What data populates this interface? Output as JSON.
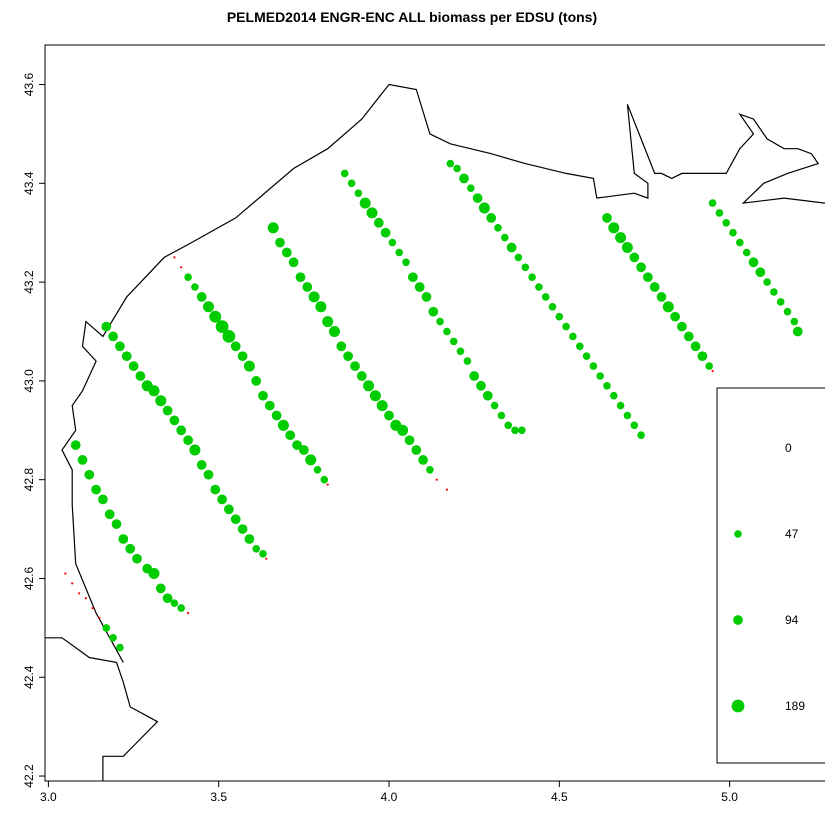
{
  "chart_data": {
    "type": "scatter",
    "title": "PELMED2014 ENGR-ENC ALL biomass per EDSU (tons)",
    "xlabel": "",
    "ylabel": "",
    "xlim": [
      2.99,
      5.28
    ],
    "ylim": [
      42.19,
      43.68
    ],
    "x_ticks": [
      "3.0",
      "3.5",
      "4.0",
      "4.5",
      "5.0"
    ],
    "y_ticks": [
      "42.2",
      "42.4",
      "42.6",
      "42.8",
      "43.0",
      "43.2",
      "43.4",
      "43.6"
    ],
    "grid": false,
    "colors": {
      "zero": "#ff0000",
      "positive": "#00cc00",
      "coast": "#000000"
    },
    "legend": {
      "placement": "right",
      "entries": [
        {
          "label": "0",
          "value": 0
        },
        {
          "label": "47",
          "value": 47
        },
        {
          "label": "94",
          "value": 94
        },
        {
          "label": "189",
          "value": 189
        }
      ]
    },
    "coastline": [
      [
        [
          2.99,
          42.48
        ],
        [
          3.04,
          42.48
        ],
        [
          3.12,
          42.44
        ],
        [
          3.2,
          42.43
        ],
        [
          3.22,
          42.39
        ],
        [
          3.24,
          42.34
        ],
        [
          3.32,
          42.31
        ],
        [
          3.22,
          42.24
        ],
        [
          3.16,
          42.24
        ],
        [
          3.16,
          42.19
        ]
      ],
      [
        [
          3.22,
          42.43
        ],
        [
          3.14,
          42.53
        ],
        [
          3.08,
          42.63
        ],
        [
          3.07,
          42.75
        ],
        [
          3.07,
          42.82
        ],
        [
          3.04,
          42.86
        ],
        [
          3.08,
          42.9
        ],
        [
          3.07,
          42.95
        ],
        [
          3.1,
          42.98
        ],
        [
          3.14,
          43.04
        ],
        [
          3.1,
          43.07
        ],
        [
          3.11,
          43.12
        ],
        [
          3.16,
          43.09
        ],
        [
          3.23,
          43.17
        ],
        [
          3.34,
          43.25
        ],
        [
          3.42,
          43.28
        ],
        [
          3.55,
          43.33
        ],
        [
          3.72,
          43.43
        ],
        [
          3.82,
          43.47
        ],
        [
          3.92,
          43.53
        ],
        [
          4.0,
          43.6
        ],
        [
          4.08,
          43.59
        ],
        [
          4.12,
          43.5
        ],
        [
          4.18,
          43.48
        ],
        [
          4.3,
          43.46
        ],
        [
          4.4,
          43.44
        ],
        [
          4.52,
          43.42
        ],
        [
          4.6,
          43.41
        ],
        [
          4.61,
          43.37
        ],
        [
          4.72,
          43.38
        ],
        [
          4.76,
          43.37
        ],
        [
          4.76,
          43.4
        ],
        [
          4.72,
          43.42
        ],
        [
          4.7,
          43.56
        ],
        [
          4.74,
          43.49
        ],
        [
          4.78,
          43.42
        ],
        [
          4.8,
          43.42
        ],
        [
          4.83,
          43.41
        ],
        [
          4.86,
          43.42
        ],
        [
          4.93,
          43.42
        ],
        [
          4.99,
          43.42
        ],
        [
          5.03,
          43.47
        ],
        [
          5.07,
          43.5
        ],
        [
          5.03,
          43.54
        ],
        [
          5.07,
          43.53
        ],
        [
          5.11,
          43.49
        ],
        [
          5.16,
          43.47
        ],
        [
          5.2,
          43.47
        ],
        [
          5.24,
          43.46
        ],
        [
          5.26,
          43.44
        ],
        [
          5.17,
          43.42
        ],
        [
          5.1,
          43.4
        ],
        [
          5.04,
          43.36
        ],
        [
          5.16,
          43.37
        ],
        [
          5.28,
          43.36
        ]
      ]
    ],
    "series": [
      {
        "points": [
          [
            3.05,
            42.61,
            0
          ],
          [
            3.07,
            42.59,
            0
          ],
          [
            3.09,
            42.57,
            0
          ],
          [
            3.11,
            42.56,
            0
          ],
          [
            3.13,
            42.54,
            0
          ],
          [
            3.15,
            42.52,
            0
          ],
          [
            3.17,
            42.5,
            47
          ],
          [
            3.19,
            42.48,
            47
          ],
          [
            3.21,
            42.46,
            47
          ]
        ]
      },
      {
        "points": [
          [
            3.08,
            42.87,
            94
          ],
          [
            3.1,
            42.84,
            94
          ],
          [
            3.12,
            42.81,
            94
          ],
          [
            3.14,
            42.78,
            94
          ],
          [
            3.16,
            42.76,
            94
          ],
          [
            3.18,
            42.73,
            94
          ],
          [
            3.2,
            42.71,
            94
          ],
          [
            3.22,
            42.68,
            94
          ],
          [
            3.24,
            42.66,
            94
          ],
          [
            3.26,
            42.64,
            94
          ],
          [
            3.29,
            42.62,
            94
          ],
          [
            3.31,
            42.61,
            130
          ],
          [
            3.33,
            42.58,
            94
          ],
          [
            3.35,
            42.56,
            94
          ],
          [
            3.37,
            42.55,
            47
          ],
          [
            3.39,
            42.54,
            47
          ],
          [
            3.41,
            42.53,
            0
          ]
        ]
      },
      {
        "points": [
          [
            3.17,
            43.11,
            94
          ],
          [
            3.19,
            43.09,
            94
          ],
          [
            3.21,
            43.07,
            94
          ],
          [
            3.23,
            43.05,
            94
          ],
          [
            3.25,
            43.03,
            94
          ],
          [
            3.27,
            43.01,
            94
          ],
          [
            3.29,
            42.99,
            130
          ],
          [
            3.31,
            42.98,
            130
          ],
          [
            3.33,
            42.96,
            130
          ],
          [
            3.35,
            42.94,
            94
          ],
          [
            3.37,
            42.92,
            94
          ],
          [
            3.39,
            42.9,
            94
          ],
          [
            3.41,
            42.88,
            94
          ],
          [
            3.43,
            42.86,
            130
          ],
          [
            3.45,
            42.83,
            94
          ],
          [
            3.47,
            42.81,
            94
          ],
          [
            3.49,
            42.78,
            94
          ],
          [
            3.51,
            42.76,
            94
          ],
          [
            3.53,
            42.74,
            94
          ],
          [
            3.55,
            42.72,
            94
          ],
          [
            3.57,
            42.7,
            94
          ],
          [
            3.59,
            42.68,
            94
          ],
          [
            3.61,
            42.66,
            47
          ],
          [
            3.63,
            42.65,
            47
          ],
          [
            3.64,
            42.64,
            0
          ]
        ]
      },
      {
        "points": [
          [
            3.37,
            43.25,
            0
          ],
          [
            3.39,
            43.23,
            0
          ],
          [
            3.41,
            43.21,
            47
          ],
          [
            3.43,
            43.19,
            47
          ],
          [
            3.45,
            43.17,
            94
          ],
          [
            3.47,
            43.15,
            130
          ],
          [
            3.49,
            43.13,
            160
          ],
          [
            3.51,
            43.11,
            189
          ],
          [
            3.53,
            43.09,
            189
          ],
          [
            3.55,
            43.07,
            94
          ],
          [
            3.57,
            43.05,
            94
          ],
          [
            3.59,
            43.03,
            130
          ],
          [
            3.61,
            43.0,
            94
          ],
          [
            3.63,
            42.97,
            94
          ],
          [
            3.65,
            42.95,
            94
          ],
          [
            3.67,
            42.93,
            94
          ],
          [
            3.69,
            42.91,
            130
          ],
          [
            3.71,
            42.89,
            94
          ],
          [
            3.73,
            42.87,
            94
          ],
          [
            3.75,
            42.86,
            94
          ],
          [
            3.77,
            42.84,
            130
          ],
          [
            3.79,
            42.82,
            47
          ],
          [
            3.81,
            42.8,
            47
          ],
          [
            3.82,
            42.79,
            0
          ]
        ]
      },
      {
        "points": [
          [
            3.66,
            43.31,
            130
          ],
          [
            3.68,
            43.28,
            94
          ],
          [
            3.7,
            43.26,
            94
          ],
          [
            3.72,
            43.24,
            94
          ],
          [
            3.74,
            43.21,
            94
          ],
          [
            3.76,
            43.19,
            94
          ],
          [
            3.78,
            43.17,
            130
          ],
          [
            3.8,
            43.15,
            130
          ],
          [
            3.82,
            43.12,
            130
          ],
          [
            3.84,
            43.1,
            130
          ],
          [
            3.86,
            43.07,
            94
          ],
          [
            3.88,
            43.05,
            94
          ],
          [
            3.9,
            43.03,
            94
          ],
          [
            3.92,
            43.01,
            94
          ],
          [
            3.94,
            42.99,
            130
          ],
          [
            3.96,
            42.97,
            130
          ],
          [
            3.98,
            42.95,
            130
          ],
          [
            4.0,
            42.93,
            94
          ],
          [
            4.02,
            42.91,
            130
          ],
          [
            4.04,
            42.9,
            130
          ],
          [
            4.06,
            42.88,
            94
          ],
          [
            4.08,
            42.86,
            94
          ],
          [
            4.1,
            42.84,
            94
          ],
          [
            4.12,
            42.82,
            47
          ],
          [
            4.14,
            42.8,
            0
          ],
          [
            4.17,
            42.78,
            0
          ]
        ]
      },
      {
        "points": [
          [
            3.87,
            43.42,
            47
          ],
          [
            3.89,
            43.4,
            47
          ],
          [
            3.91,
            43.38,
            47
          ],
          [
            3.93,
            43.36,
            130
          ],
          [
            3.95,
            43.34,
            130
          ],
          [
            3.97,
            43.32,
            94
          ],
          [
            3.99,
            43.3,
            94
          ],
          [
            4.01,
            43.28,
            47
          ],
          [
            4.03,
            43.26,
            47
          ],
          [
            4.05,
            43.24,
            47
          ],
          [
            4.07,
            43.21,
            94
          ],
          [
            4.09,
            43.19,
            94
          ],
          [
            4.11,
            43.17,
            94
          ],
          [
            4.13,
            43.14,
            94
          ],
          [
            4.15,
            43.12,
            47
          ],
          [
            4.17,
            43.1,
            47
          ],
          [
            4.19,
            43.08,
            47
          ],
          [
            4.21,
            43.06,
            47
          ],
          [
            4.23,
            43.04,
            47
          ],
          [
            4.25,
            43.01,
            94
          ],
          [
            4.27,
            42.99,
            94
          ],
          [
            4.29,
            42.97,
            94
          ],
          [
            4.31,
            42.95,
            47
          ],
          [
            4.33,
            42.93,
            47
          ],
          [
            4.35,
            42.91,
            47
          ],
          [
            4.37,
            42.9,
            47
          ],
          [
            4.39,
            42.9,
            47
          ]
        ]
      },
      {
        "points": [
          [
            4.18,
            43.44,
            47
          ],
          [
            4.2,
            43.43,
            47
          ],
          [
            4.22,
            43.41,
            94
          ],
          [
            4.24,
            43.39,
            47
          ],
          [
            4.26,
            43.37,
            94
          ],
          [
            4.28,
            43.35,
            130
          ],
          [
            4.3,
            43.33,
            94
          ],
          [
            4.32,
            43.31,
            47
          ],
          [
            4.34,
            43.29,
            47
          ],
          [
            4.36,
            43.27,
            94
          ],
          [
            4.38,
            43.25,
            47
          ],
          [
            4.4,
            43.23,
            47
          ],
          [
            4.42,
            43.21,
            47
          ],
          [
            4.44,
            43.19,
            47
          ],
          [
            4.46,
            43.17,
            47
          ],
          [
            4.48,
            43.15,
            47
          ],
          [
            4.5,
            43.13,
            47
          ],
          [
            4.52,
            43.11,
            47
          ],
          [
            4.54,
            43.09,
            47
          ],
          [
            4.56,
            43.07,
            47
          ],
          [
            4.58,
            43.05,
            47
          ],
          [
            4.6,
            43.03,
            47
          ],
          [
            4.62,
            43.01,
            47
          ],
          [
            4.64,
            42.99,
            47
          ],
          [
            4.66,
            42.97,
            47
          ],
          [
            4.68,
            42.95,
            47
          ],
          [
            4.7,
            42.93,
            47
          ],
          [
            4.72,
            42.91,
            47
          ],
          [
            4.74,
            42.89,
            47
          ]
        ]
      },
      {
        "points": [
          [
            4.64,
            43.33,
            94
          ],
          [
            4.66,
            43.31,
            130
          ],
          [
            4.68,
            43.29,
            130
          ],
          [
            4.7,
            43.27,
            130
          ],
          [
            4.72,
            43.25,
            94
          ],
          [
            4.74,
            43.23,
            94
          ],
          [
            4.76,
            43.21,
            94
          ],
          [
            4.78,
            43.19,
            94
          ],
          [
            4.8,
            43.17,
            94
          ],
          [
            4.82,
            43.15,
            130
          ],
          [
            4.84,
            43.13,
            94
          ],
          [
            4.86,
            43.11,
            94
          ],
          [
            4.88,
            43.09,
            94
          ],
          [
            4.9,
            43.07,
            94
          ],
          [
            4.92,
            43.05,
            94
          ],
          [
            4.94,
            43.03,
            47
          ],
          [
            4.95,
            43.02,
            0
          ]
        ]
      },
      {
        "points": [
          [
            4.95,
            43.36,
            47
          ],
          [
            4.97,
            43.34,
            47
          ],
          [
            4.99,
            43.32,
            47
          ],
          [
            5.01,
            43.3,
            47
          ],
          [
            5.03,
            43.28,
            47
          ],
          [
            5.05,
            43.26,
            47
          ],
          [
            5.07,
            43.24,
            94
          ],
          [
            5.09,
            43.22,
            94
          ],
          [
            5.11,
            43.2,
            47
          ],
          [
            5.13,
            43.18,
            47
          ],
          [
            5.15,
            43.16,
            47
          ],
          [
            5.17,
            43.14,
            47
          ],
          [
            5.19,
            43.12,
            47
          ],
          [
            5.2,
            43.1,
            94
          ]
        ]
      }
    ]
  }
}
